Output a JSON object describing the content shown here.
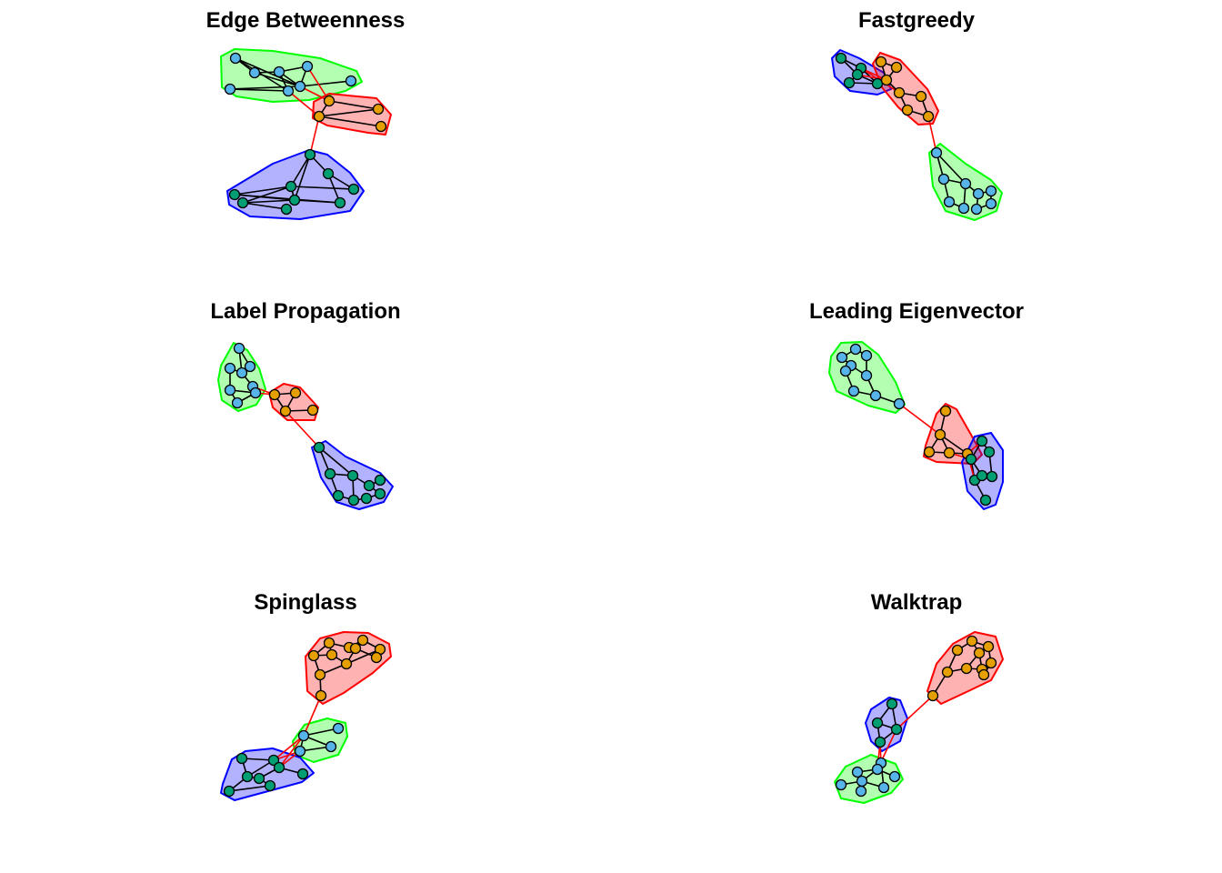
{
  "colors": {
    "node_palette": [
      "#56B4E9",
      "#E69F00",
      "#009E73"
    ],
    "hull_fill_palette": [
      "#00FF00",
      "#FF0000",
      "#0000FF"
    ],
    "hull_stroke_palette": [
      "#00FF00",
      "#FF0000",
      "#0000FF"
    ],
    "intra_edge": "#000000",
    "inter_edge": "#FF0000",
    "node_border": "#000000"
  },
  "panels": [
    {
      "title": "Edge Betweenness"
    },
    {
      "title": "Fastgreedy"
    },
    {
      "title": "Label Propagation"
    },
    {
      "title": "Leading Eigenvector"
    },
    {
      "title": "Spinglass"
    },
    {
      "title": "Walktrap"
    }
  ]
}
